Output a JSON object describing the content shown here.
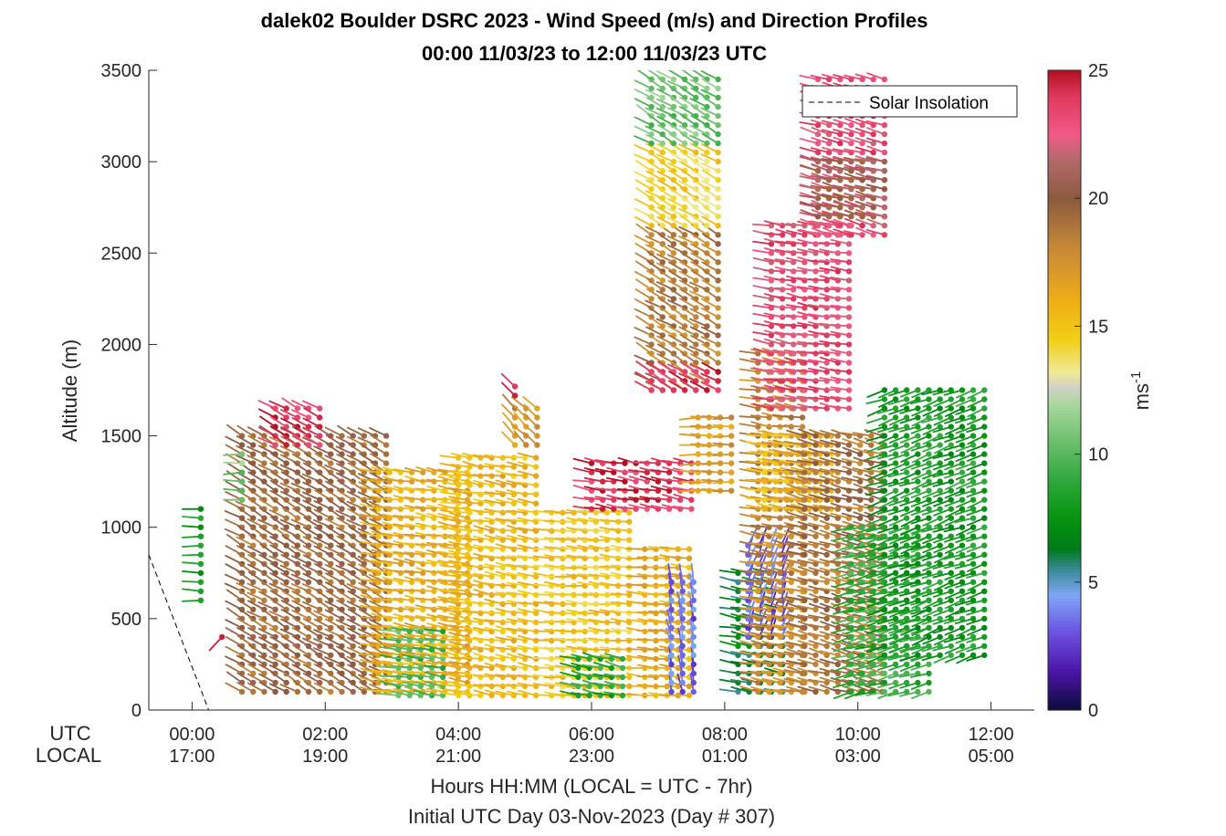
{
  "chart_data": {
    "type": "wind-barb-profile",
    "title": "dalek02 Boulder DSRC 2023 - Wind Speed (m/s) and Direction Profiles",
    "subtitle": "00:00 11/03/23 to 12:00 11/03/23  UTC",
    "ylabel": "Altitude (m)",
    "xlabel": "Hours HH:MM  (LOCAL = UTC - 7hr)",
    "xlabel2": "Initial UTC Day 03-Nov-2023 (Day # 307)",
    "utc_label": "UTC",
    "local_label": "LOCAL",
    "x_utc_ticks": [
      "00:00",
      "02:00",
      "04:00",
      "06:00",
      "08:00",
      "10:00",
      "12:00"
    ],
    "x_local_ticks": [
      "17:00",
      "19:00",
      "21:00",
      "23:00",
      "01:00",
      "03:00",
      "05:00"
    ],
    "x_range_hours": [
      -0.65,
      12.65
    ],
    "y_ticks": [
      "0",
      "500",
      "1000",
      "1500",
      "2000",
      "2500",
      "3000",
      "3500"
    ],
    "ylim": [
      0,
      3500
    ],
    "legend": {
      "entry": "Solar Insolation",
      "placement": "top-right"
    },
    "solar_insolation": {
      "x_hours": [
        -0.65,
        0.25,
        12.65
      ],
      "altitude_m": [
        850,
        0,
        0
      ]
    },
    "colorbar": {
      "label": "ms-1",
      "label_main": "ms",
      "label_sup": "-1",
      "range": [
        0,
        25
      ],
      "ticks": [
        "0",
        "5",
        "10",
        "15",
        "20",
        "25"
      ],
      "color_stops": [
        [
          0,
          "#0b0b3b"
        ],
        [
          1.5,
          "#4b14a6"
        ],
        [
          3,
          "#6b4fe0"
        ],
        [
          4.5,
          "#7ea7f5"
        ],
        [
          5.5,
          "#3a8a96"
        ],
        [
          6.3,
          "#007a1a"
        ],
        [
          7.5,
          "#06940f"
        ],
        [
          9,
          "#2fa83c"
        ],
        [
          10.5,
          "#6cbf6c"
        ],
        [
          12,
          "#a9d9a0"
        ],
        [
          12.6,
          "#d0d0c8"
        ],
        [
          13.2,
          "#f0ea9a"
        ],
        [
          14.5,
          "#f1cf14"
        ],
        [
          16,
          "#eeae17"
        ],
        [
          18,
          "#c98a37"
        ],
        [
          20,
          "#8c5a3f"
        ],
        [
          21.5,
          "#b26a6a"
        ],
        [
          22.5,
          "#f05a86"
        ],
        [
          24,
          "#e0385f"
        ],
        [
          25,
          "#b21020"
        ]
      ]
    },
    "segments": [
      {
        "t0": 0.13,
        "t1": 0.13,
        "a0": 600,
        "a1": 1100,
        "s": 8,
        "dir": 270
      },
      {
        "t0": 0.45,
        "t1": 0.45,
        "a0": 400,
        "a1": 420,
        "s": 24,
        "dir": 225
      },
      {
        "t0": 0.75,
        "t1": 3.0,
        "a0": 100,
        "a1": 1500,
        "s": 19.5,
        "dir": 300
      },
      {
        "t0": 1.25,
        "t1": 2.05,
        "a0": 1450,
        "a1": 1650,
        "s": 24,
        "dir": 300
      },
      {
        "t0": 0.75,
        "t1": 0.75,
        "a0": 1150,
        "a1": 1400,
        "s": 11,
        "dir": 270
      },
      {
        "t0": 2.8,
        "t1": 4.2,
        "a0": 100,
        "a1": 1300,
        "s": 16,
        "dir": 280
      },
      {
        "t0": 3.1,
        "t1": 3.9,
        "a0": 80,
        "a1": 450,
        "s": 9.5,
        "dir": 280
      },
      {
        "t0": 4.0,
        "t1": 5.3,
        "a0": 80,
        "a1": 1400,
        "s": 15.5,
        "dir": 280
      },
      {
        "t0": 4.85,
        "t1": 5.25,
        "a0": 1450,
        "a1": 1650,
        "s": 17.5,
        "dir": 315
      },
      {
        "t0": 4.85,
        "t1": 4.85,
        "a0": 1720,
        "a1": 1800,
        "s": 24,
        "dir": 315
      },
      {
        "t0": 5.4,
        "t1": 6.7,
        "a0": 80,
        "a1": 1100,
        "s": 15,
        "dir": 275
      },
      {
        "t0": 5.8,
        "t1": 6.6,
        "a0": 80,
        "a1": 300,
        "s": 8.5,
        "dir": 285
      },
      {
        "t0": 6.0,
        "t1": 7.5,
        "a0": 1100,
        "a1": 1350,
        "s": 24,
        "dir": 280
      },
      {
        "t0": 6.8,
        "t1": 7.6,
        "a0": 80,
        "a1": 900,
        "s": 16,
        "dir": 275
      },
      {
        "t0": 7.2,
        "t1": 7.6,
        "a0": 100,
        "a1": 700,
        "s": 3.5,
        "dir": 350
      },
      {
        "t0": 6.9,
        "t1": 7.9,
        "a0": 1750,
        "a1": 2600,
        "s": 18.5,
        "dir": 300
      },
      {
        "t0": 6.9,
        "t1": 7.9,
        "a0": 1750,
        "a1": 1850,
        "s": 24,
        "dir": 300
      },
      {
        "t0": 6.9,
        "t1": 7.9,
        "a0": 2650,
        "a1": 3050,
        "s": 14.5,
        "dir": 300
      },
      {
        "t0": 6.9,
        "t1": 7.9,
        "a0": 3100,
        "a1": 3450,
        "s": 10.5,
        "dir": 300
      },
      {
        "t0": 7.6,
        "t1": 8.2,
        "a0": 1200,
        "a1": 1600,
        "s": 17,
        "dir": 270
      },
      {
        "t0": 8.2,
        "t1": 8.9,
        "a0": 100,
        "a1": 750,
        "s": 6.5,
        "dir": 280
      },
      {
        "t0": 8.35,
        "t1": 8.85,
        "a0": 400,
        "a1": 900,
        "s": 3,
        "dir": 20
      },
      {
        "t0": 8.5,
        "t1": 9.3,
        "a0": 100,
        "a1": 1950,
        "s": 18,
        "dir": 280
      },
      {
        "t0": 8.6,
        "t1": 9.6,
        "a0": 1100,
        "a1": 1500,
        "s": 15.5,
        "dir": 280
      },
      {
        "t0": 8.7,
        "t1": 9.9,
        "a0": 1650,
        "a1": 2650,
        "s": 23,
        "dir": 280
      },
      {
        "t0": 9.2,
        "t1": 10.5,
        "a0": 100,
        "a1": 1500,
        "s": 19,
        "dir": 285
      },
      {
        "t0": 9.9,
        "t1": 11.2,
        "a0": 100,
        "a1": 1000,
        "s": 9,
        "dir": 255
      },
      {
        "t0": 10.4,
        "t1": 11.9,
        "a0": 300,
        "a1": 1750,
        "s": 8,
        "dir": 250
      },
      {
        "t0": 9.4,
        "t1": 10.5,
        "a0": 2600,
        "a1": 3450,
        "s": 23,
        "dir": 285
      },
      {
        "t0": 9.4,
        "t1": 10.5,
        "a0": 2700,
        "a1": 3000,
        "s": 20.5,
        "dir": 285
      }
    ]
  }
}
